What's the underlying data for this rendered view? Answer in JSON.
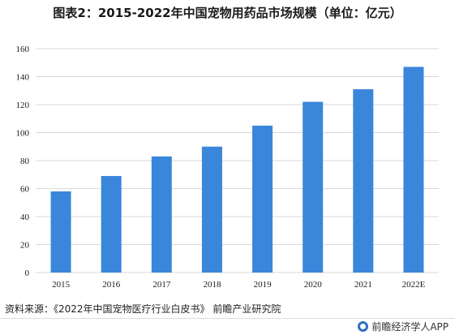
{
  "title": "图表2：2015-2022年中国宠物用药品市场规模（单位：亿元）",
  "source": "资料来源：《2022年中国宠物医疗行业白皮书》 前瞻产业研究院",
  "brand": "前瞻经济学人APP",
  "colors": {
    "bar": "#3a86db",
    "grid": "#d9d9d9"
  },
  "chart_data": {
    "type": "bar",
    "categories": [
      "2015",
      "2016",
      "2017",
      "2018",
      "2019",
      "2020",
      "2021",
      "2022E"
    ],
    "values": [
      58,
      69,
      83,
      90,
      105,
      122,
      131,
      147
    ],
    "ylim": [
      0,
      160
    ],
    "yticks": [
      0,
      20,
      40,
      60,
      80,
      100,
      120,
      140,
      160
    ],
    "grid": true,
    "legend": "none"
  }
}
